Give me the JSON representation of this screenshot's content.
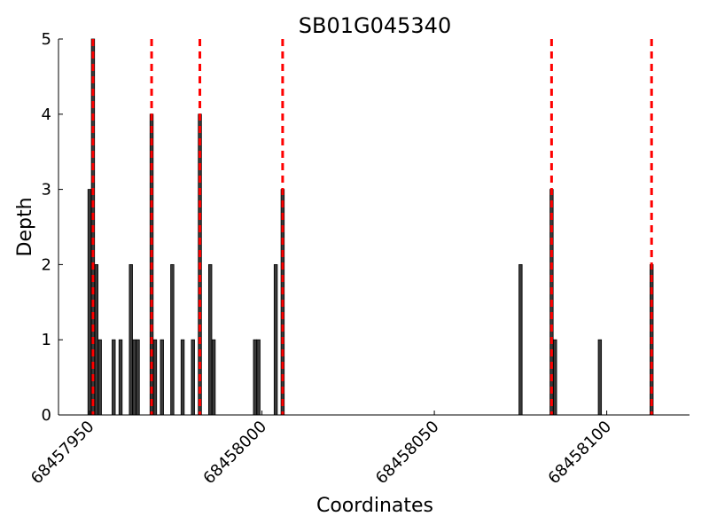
{
  "chart_data": {
    "type": "bar",
    "title": "SB01G045340",
    "xlabel": "Coordinates",
    "ylabel": "Depth",
    "xlim": [
      68457941,
      68458110
    ],
    "ylim": [
      0,
      5
    ],
    "yticks": [
      0,
      1,
      2,
      3,
      4,
      5
    ],
    "xticks": [
      68457950,
      68458000,
      68458050,
      68458100
    ],
    "xtick_labels": [
      "68457950",
      "68458000",
      "68458050",
      "68458100"
    ],
    "bar_color": "#3a3a3a",
    "marker_color": "#ff0000",
    "grid": false,
    "bars": [
      {
        "x": 68457950,
        "y": 3
      },
      {
        "x": 68457951,
        "y": 5
      },
      {
        "x": 68457952,
        "y": 2
      },
      {
        "x": 68457953,
        "y": 1
      },
      {
        "x": 68457957,
        "y": 1
      },
      {
        "x": 68457959,
        "y": 1
      },
      {
        "x": 68457962,
        "y": 2
      },
      {
        "x": 68457963,
        "y": 1
      },
      {
        "x": 68457964,
        "y": 1
      },
      {
        "x": 68457968,
        "y": 4
      },
      {
        "x": 68457969,
        "y": 1
      },
      {
        "x": 68457971,
        "y": 1
      },
      {
        "x": 68457974,
        "y": 2
      },
      {
        "x": 68457977,
        "y": 1
      },
      {
        "x": 68457980,
        "y": 1
      },
      {
        "x": 68457982,
        "y": 4
      },
      {
        "x": 68457985,
        "y": 2
      },
      {
        "x": 68457986,
        "y": 1
      },
      {
        "x": 68457998,
        "y": 1
      },
      {
        "x": 68457999,
        "y": 1
      },
      {
        "x": 68458004,
        "y": 2
      },
      {
        "x": 68458006,
        "y": 3
      },
      {
        "x": 68458075,
        "y": 2
      },
      {
        "x": 68458084,
        "y": 3
      },
      {
        "x": 68458085,
        "y": 1
      },
      {
        "x": 68458098,
        "y": 1
      },
      {
        "x": 68458113,
        "y": 2
      }
    ],
    "markers": [
      68457951,
      68457968,
      68457982,
      68458006,
      68458084,
      68458113
    ]
  }
}
